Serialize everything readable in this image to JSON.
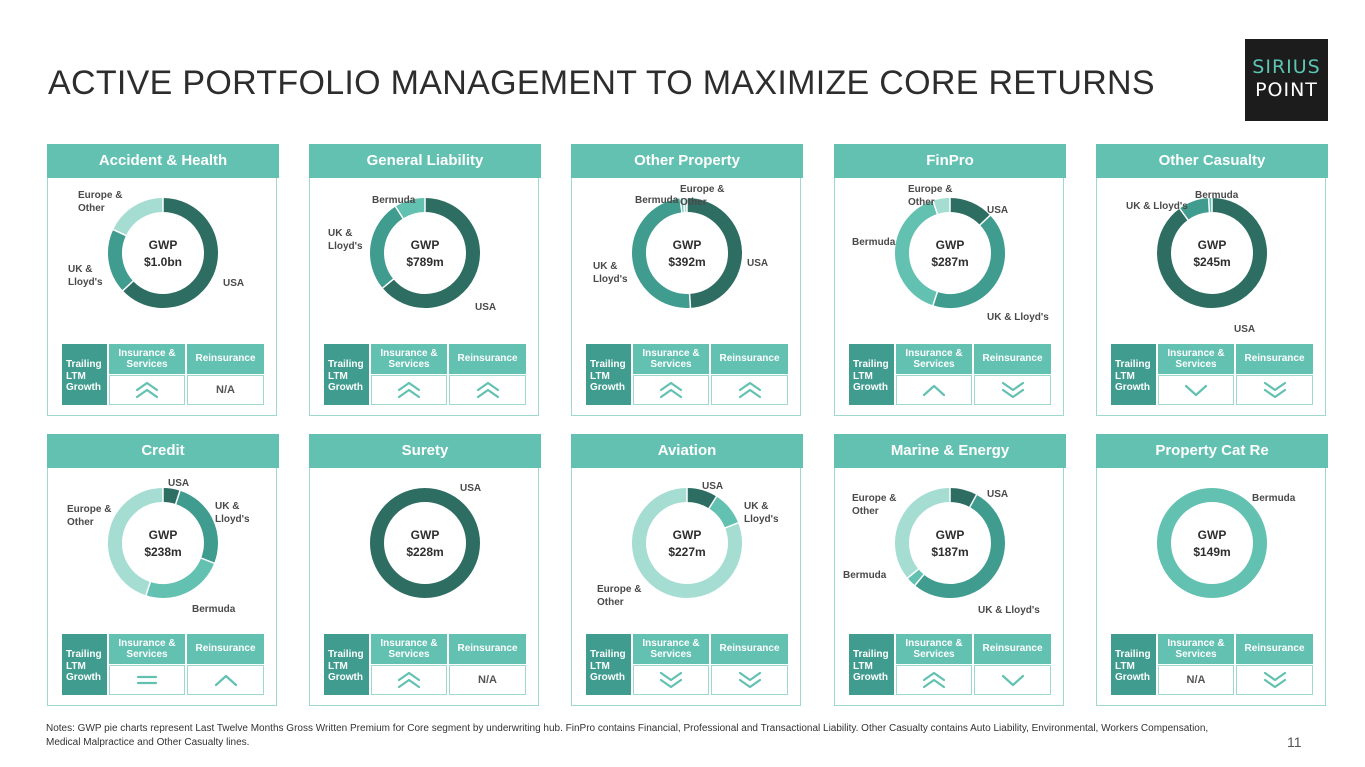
{
  "title": "ACTIVE PORTFOLIO MANAGEMENT TO MAXIMIZE CORE RETURNS",
  "logo": {
    "line1": "SIRIUS",
    "line2": "POINT"
  },
  "colors": {
    "header": "#62c1b1",
    "dark": "#2e6e62",
    "mid": "#3f9c8e",
    "light": "#a6ddd3",
    "trailing": "#3f9c8e"
  },
  "table_labels": {
    "trailing": "Trailing LTM Growth",
    "insurance": "Insurance & Services",
    "reinsurance": "Reinsurance"
  },
  "chart_data": [
    {
      "type": "pie",
      "title": "Accident & Health",
      "center_label": "GWP",
      "center_value": "$1.0bn",
      "slices": [
        {
          "label": "USA",
          "value": 63,
          "color": "#2e6e62"
        },
        {
          "label": "UK & Lloyd's",
          "value": 19,
          "color": "#3f9c8e"
        },
        {
          "label": "Europe & Other",
          "value": 18,
          "color": "#a6ddd3"
        }
      ],
      "growth": {
        "insurance": "up-double",
        "reinsurance": "N/A"
      }
    },
    {
      "type": "pie",
      "title": "General Liability",
      "center_label": "GWP",
      "center_value": "$789m",
      "slices": [
        {
          "label": "USA",
          "value": 64,
          "color": "#2e6e62"
        },
        {
          "label": "UK & Lloyd's",
          "value": 27,
          "color": "#3f9c8e"
        },
        {
          "label": "Bermuda",
          "value": 9,
          "color": "#62c1b1"
        }
      ],
      "growth": {
        "insurance": "up-double",
        "reinsurance": "up-double"
      }
    },
    {
      "type": "pie",
      "title": "Other Property",
      "center_label": "GWP",
      "center_value": "$392m",
      "slices": [
        {
          "label": "USA",
          "value": 49,
          "color": "#2e6e62"
        },
        {
          "label": "UK & Lloyd's",
          "value": 49,
          "color": "#3f9c8e"
        },
        {
          "label": "Bermuda",
          "value": 1,
          "color": "#62c1b1"
        },
        {
          "label": "Europe & Other",
          "value": 1,
          "color": "#a6ddd3"
        }
      ],
      "growth": {
        "insurance": "up-double",
        "reinsurance": "up-double"
      }
    },
    {
      "type": "pie",
      "title": "FinPro",
      "center_label": "GWP",
      "center_value": "$287m",
      "slices": [
        {
          "label": "USA",
          "value": 13,
          "color": "#2e6e62"
        },
        {
          "label": "UK & Lloyd's",
          "value": 42,
          "color": "#3f9c8e"
        },
        {
          "label": "Bermuda",
          "value": 40,
          "color": "#62c1b1"
        },
        {
          "label": "Europe & Other",
          "value": 5,
          "color": "#a6ddd3"
        }
      ],
      "growth": {
        "insurance": "up-single",
        "reinsurance": "down-double"
      }
    },
    {
      "type": "pie",
      "title": "Other Casualty",
      "center_label": "GWP",
      "center_value": "$245m",
      "slices": [
        {
          "label": "USA",
          "value": 90,
          "color": "#2e6e62"
        },
        {
          "label": "UK & Lloyd's",
          "value": 9,
          "color": "#3f9c8e"
        },
        {
          "label": "Bermuda",
          "value": 1,
          "color": "#62c1b1"
        }
      ],
      "growth": {
        "insurance": "down-single",
        "reinsurance": "down-double"
      }
    },
    {
      "type": "pie",
      "title": "Credit",
      "center_label": "GWP",
      "center_value": "$238m",
      "slices": [
        {
          "label": "USA",
          "value": 5,
          "color": "#2e6e62"
        },
        {
          "label": "UK & Lloyd's",
          "value": 26,
          "color": "#3f9c8e"
        },
        {
          "label": "Bermuda",
          "value": 24,
          "color": "#62c1b1"
        },
        {
          "label": "Europe & Other",
          "value": 45,
          "color": "#a6ddd3"
        }
      ],
      "growth": {
        "insurance": "equal",
        "reinsurance": "up-single"
      }
    },
    {
      "type": "pie",
      "title": "Surety",
      "center_label": "GWP",
      "center_value": "$228m",
      "slices": [
        {
          "label": "USA",
          "value": 100,
          "color": "#2e6e62"
        }
      ],
      "growth": {
        "insurance": "up-double",
        "reinsurance": "N/A"
      }
    },
    {
      "type": "pie",
      "title": "Aviation",
      "center_label": "GWP",
      "center_value": "$227m",
      "slices": [
        {
          "label": "USA",
          "value": 9,
          "color": "#2e6e62"
        },
        {
          "label": "UK & Lloyd's",
          "value": 10,
          "color": "#62c1b1"
        },
        {
          "label": "Europe & Other",
          "value": 81,
          "color": "#a6ddd3"
        }
      ],
      "growth": {
        "insurance": "down-double",
        "reinsurance": "down-double"
      }
    },
    {
      "type": "pie",
      "title": "Marine & Energy",
      "center_label": "GWP",
      "center_value": "$187m",
      "slices": [
        {
          "label": "USA",
          "value": 8,
          "color": "#2e6e62"
        },
        {
          "label": "UK & Lloyd's",
          "value": 53,
          "color": "#3f9c8e"
        },
        {
          "label": "Bermuda",
          "value": 3,
          "color": "#62c1b1"
        },
        {
          "label": "Europe & Other",
          "value": 36,
          "color": "#a6ddd3"
        }
      ],
      "growth": {
        "insurance": "up-double",
        "reinsurance": "down-single"
      }
    },
    {
      "type": "pie",
      "title": "Property Cat Re",
      "center_label": "GWP",
      "center_value": "$149m",
      "slices": [
        {
          "label": "Bermuda",
          "value": 100,
          "color": "#62c1b1"
        }
      ],
      "growth": {
        "insurance": "N/A",
        "reinsurance": "down-double"
      }
    }
  ],
  "notes": "Notes: GWP pie charts represent Last Twelve Months Gross Written Premium for Core segment by underwriting hub. FinPro contains Financial, Professional and Transactional Liability. Other Casualty contains Auto Liability, Environmental, Workers Compensation, Medical Malpractice and Other Casualty lines.",
  "page_number": "11"
}
